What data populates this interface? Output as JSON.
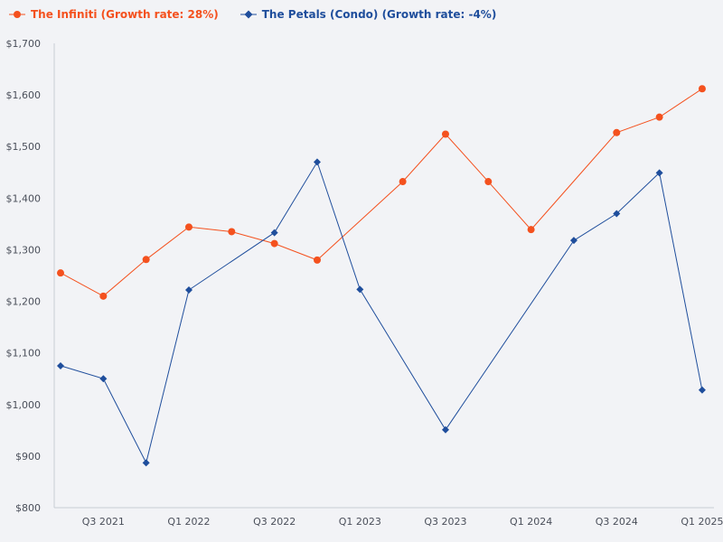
{
  "chart_data": {
    "type": "line",
    "title": "",
    "xlabel": "",
    "ylabel": "",
    "ylim": [
      800,
      1700
    ],
    "y_ticks": [
      800,
      900,
      1000,
      1100,
      1200,
      1300,
      1400,
      1500,
      1600,
      1700
    ],
    "y_tick_labels": [
      "$800",
      "$900",
      "$1,000",
      "$1,100",
      "$1,200",
      "$1,300",
      "$1,400",
      "$1,500",
      "$1,600",
      "$1,700"
    ],
    "categories": [
      "Q2 2021",
      "Q3 2021",
      "Q4 2021",
      "Q1 2022",
      "Q2 2022",
      "Q3 2022",
      "Q4 2022",
      "Q1 2023",
      "Q2 2023",
      "Q3 2023",
      "Q4 2023",
      "Q1 2024",
      "Q2 2024",
      "Q3 2024",
      "Q4 2024",
      "Q1 2025"
    ],
    "tick_labels": [
      {
        "index": 1,
        "label": "Q3 2021"
      },
      {
        "index": 3,
        "label": "Q1 2022"
      },
      {
        "index": 5,
        "label": "Q3 2022"
      },
      {
        "index": 7,
        "label": "Q1 2023"
      },
      {
        "index": 9,
        "label": "Q3 2023"
      },
      {
        "index": 11,
        "label": "Q1 2024"
      },
      {
        "index": 13,
        "label": "Q3 2024"
      },
      {
        "index": 15,
        "label": "Q1 2025"
      }
    ],
    "series": [
      {
        "name": "The Infiniti (Growth rate: 28%)",
        "color": "#f4511e",
        "marker": "circle",
        "points": [
          {
            "i": 0,
            "v": 1255
          },
          {
            "i": 1,
            "v": 1210
          },
          {
            "i": 2,
            "v": 1281
          },
          {
            "i": 3,
            "v": 1344
          },
          {
            "i": 4,
            "v": 1335
          },
          {
            "i": 5,
            "v": 1312
          },
          {
            "i": 6,
            "v": 1280
          },
          {
            "i": 8,
            "v": 1432
          },
          {
            "i": 9,
            "v": 1524
          },
          {
            "i": 10,
            "v": 1432
          },
          {
            "i": 11,
            "v": 1339
          },
          {
            "i": 13,
            "v": 1527
          },
          {
            "i": 14,
            "v": 1557
          },
          {
            "i": 15,
            "v": 1612
          }
        ]
      },
      {
        "name": "The Petals (Condo) (Growth rate: -4%)",
        "color": "#1f4e9c",
        "marker": "diamond",
        "points": [
          {
            "i": 0,
            "v": 1075
          },
          {
            "i": 1,
            "v": 1050
          },
          {
            "i": 2,
            "v": 887
          },
          {
            "i": 3,
            "v": 1222
          },
          {
            "i": 5,
            "v": 1333
          },
          {
            "i": 6,
            "v": 1470
          },
          {
            "i": 7,
            "v": 1223
          },
          {
            "i": 9,
            "v": 951
          },
          {
            "i": 12,
            "v": 1318
          },
          {
            "i": 13,
            "v": 1370
          },
          {
            "i": 14,
            "v": 1449
          },
          {
            "i": 15,
            "v": 1028
          }
        ]
      }
    ]
  }
}
